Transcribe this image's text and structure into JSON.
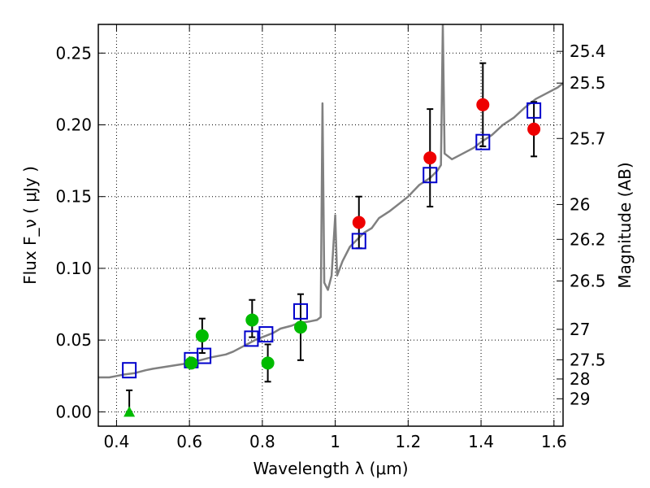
{
  "chart_data": {
    "type": "scatter",
    "xlabel": "Wavelength  λ (μm)",
    "ylabel": "Flux  F_ν  ( μJy )",
    "ylabel_right": "Magnitude (AB)",
    "xlim": [
      0.35,
      1.625
    ],
    "ylim": [
      -0.01,
      0.27
    ],
    "xticks": [
      0.4,
      0.6,
      0.8,
      1.0,
      1.2,
      1.4,
      1.6
    ],
    "xtick_labels": [
      "0.4",
      "0.6",
      "0.8",
      "1",
      "1.2",
      "1.4",
      "1.6"
    ],
    "yticks": [
      0.0,
      0.05,
      0.1,
      0.15,
      0.2,
      0.25
    ],
    "ytick_labels": [
      "0.00",
      "0.05",
      "0.10",
      "0.15",
      "0.20",
      "0.25"
    ],
    "right_ticks": [
      {
        "label": "25.4",
        "flux": 0.2512
      },
      {
        "label": "25.5",
        "flux": 0.2291
      },
      {
        "label": "25.7",
        "flux": 0.1905
      },
      {
        "label": "26",
        "flux": 0.1445
      },
      {
        "label": "26.2",
        "flux": 0.1202
      },
      {
        "label": "26.5",
        "flux": 0.0912
      },
      {
        "label": "27",
        "flux": 0.0575
      },
      {
        "label": "27.5",
        "flux": 0.0363
      },
      {
        "label": "28",
        "flux": 0.0229
      },
      {
        "label": "29",
        "flux": 0.0091
      }
    ],
    "grid": true,
    "colors": {
      "model": "#808080",
      "green": "#00bb00",
      "red": "#ee0000",
      "box": "#0000cc",
      "errorbar": "#000000"
    },
    "model_spectrum": [
      [
        0.35,
        0.024
      ],
      [
        0.38,
        0.024
      ],
      [
        0.4,
        0.025
      ],
      [
        0.42,
        0.026
      ],
      [
        0.45,
        0.027
      ],
      [
        0.48,
        0.029
      ],
      [
        0.5,
        0.03
      ],
      [
        0.55,
        0.032
      ],
      [
        0.6,
        0.034
      ],
      [
        0.63,
        0.036
      ],
      [
        0.66,
        0.038
      ],
      [
        0.7,
        0.04
      ],
      [
        0.72,
        0.042
      ],
      [
        0.75,
        0.046
      ],
      [
        0.78,
        0.05
      ],
      [
        0.8,
        0.052
      ],
      [
        0.83,
        0.055
      ],
      [
        0.85,
        0.058
      ],
      [
        0.88,
        0.06
      ],
      [
        0.9,
        0.062
      ],
      [
        0.93,
        0.063
      ],
      [
        0.95,
        0.064
      ],
      [
        0.96,
        0.066
      ],
      [
        0.965,
        0.215
      ],
      [
        0.97,
        0.09
      ],
      [
        0.98,
        0.085
      ],
      [
        0.99,
        0.095
      ],
      [
        1.0,
        0.137
      ],
      [
        1.005,
        0.095
      ],
      [
        1.02,
        0.105
      ],
      [
        1.04,
        0.115
      ],
      [
        1.06,
        0.12
      ],
      [
        1.08,
        0.125
      ],
      [
        1.1,
        0.128
      ],
      [
        1.12,
        0.135
      ],
      [
        1.15,
        0.14
      ],
      [
        1.18,
        0.146
      ],
      [
        1.2,
        0.15
      ],
      [
        1.23,
        0.158
      ],
      [
        1.26,
        0.163
      ],
      [
        1.28,
        0.168
      ],
      [
        1.29,
        0.172
      ],
      [
        1.295,
        0.27
      ],
      [
        1.3,
        0.18
      ],
      [
        1.32,
        0.176
      ],
      [
        1.35,
        0.18
      ],
      [
        1.38,
        0.184
      ],
      [
        1.4,
        0.188
      ],
      [
        1.43,
        0.193
      ],
      [
        1.46,
        0.2
      ],
      [
        1.49,
        0.205
      ],
      [
        1.52,
        0.212
      ],
      [
        1.55,
        0.218
      ],
      [
        1.58,
        0.222
      ],
      [
        1.61,
        0.226
      ],
      [
        1.625,
        0.229
      ]
    ],
    "green_points": [
      {
        "x": 0.605,
        "y": 0.034,
        "err": null
      },
      {
        "x": 0.635,
        "y": 0.053,
        "err": [
          0.041,
          0.065
        ]
      },
      {
        "x": 0.772,
        "y": 0.064,
        "err": [
          0.052,
          0.078
        ]
      },
      {
        "x": 0.815,
        "y": 0.034,
        "err": [
          0.021,
          0.047
        ]
      },
      {
        "x": 0.905,
        "y": 0.059,
        "err": [
          0.036,
          0.082
        ]
      }
    ],
    "green_triangle": {
      "x": 0.435,
      "y": 0.0,
      "err": [
        0.0,
        0.015
      ]
    },
    "red_points": [
      {
        "x": 1.065,
        "y": 0.132,
        "err": [
          0.114,
          0.15
        ]
      },
      {
        "x": 1.26,
        "y": 0.177,
        "err": [
          0.143,
          0.211
        ]
      },
      {
        "x": 1.405,
        "y": 0.214,
        "err": [
          0.185,
          0.243
        ]
      },
      {
        "x": 1.545,
        "y": 0.197,
        "err": [
          0.178,
          0.216
        ]
      }
    ],
    "model_boxes": [
      {
        "x": 0.435,
        "y": 0.029
      },
      {
        "x": 0.605,
        "y": 0.036
      },
      {
        "x": 0.64,
        "y": 0.039
      },
      {
        "x": 0.77,
        "y": 0.051
      },
      {
        "x": 0.81,
        "y": 0.054
      },
      {
        "x": 0.905,
        "y": 0.07
      },
      {
        "x": 1.065,
        "y": 0.119
      },
      {
        "x": 1.26,
        "y": 0.165
      },
      {
        "x": 1.405,
        "y": 0.188
      },
      {
        "x": 1.545,
        "y": 0.21
      }
    ]
  }
}
